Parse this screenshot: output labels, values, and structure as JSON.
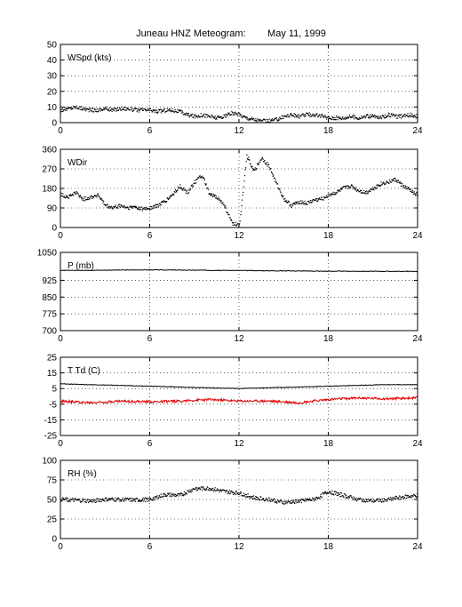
{
  "title": "Juneau HNZ Meteogram:        May 11, 1999",
  "colors": {
    "trace": "#000000",
    "dewpoint": "#e00000",
    "grid": "#000000"
  },
  "chart_data": [
    {
      "type": "scatter",
      "label": "WSpd (kts)",
      "xlim": [
        0,
        24
      ],
      "ylim": [
        0,
        50
      ],
      "xticks": [
        0,
        6,
        12,
        18,
        24
      ],
      "yticks": [
        0,
        10,
        20,
        30,
        40,
        50
      ],
      "grid": true,
      "series": [
        {
          "style": "dots",
          "color": "#000000",
          "x": [
            0,
            0.5,
            1,
            1.5,
            2,
            2.5,
            3,
            3.5,
            4,
            4.5,
            5,
            5.5,
            6,
            6.5,
            7,
            7.5,
            8,
            8.5,
            9,
            9.5,
            10,
            10.5,
            11,
            11.5,
            12,
            12.5,
            13,
            13.5,
            14,
            14.5,
            15,
            15.5,
            16,
            16.5,
            17,
            17.5,
            18,
            18.5,
            19,
            19.5,
            20,
            20.5,
            21,
            21.5,
            22,
            22.5,
            23,
            23.5,
            24
          ],
          "y": [
            8,
            9,
            10,
            9,
            8,
            8,
            9,
            8,
            9,
            9,
            8,
            8,
            8,
            7,
            8,
            8,
            7,
            5,
            4,
            5,
            4,
            3,
            4,
            6,
            5,
            3,
            2,
            1,
            1,
            2,
            4,
            5,
            4,
            5,
            5,
            4,
            3,
            3,
            3,
            4,
            3,
            4,
            4,
            3,
            5,
            4,
            4,
            5,
            4
          ]
        }
      ]
    },
    {
      "type": "scatter",
      "label": "WDir",
      "xlim": [
        0,
        24
      ],
      "ylim": [
        0,
        360
      ],
      "xticks": [
        0,
        6,
        12,
        18,
        24
      ],
      "yticks": [
        0,
        90,
        180,
        270,
        360
      ],
      "grid": true,
      "series": [
        {
          "style": "dots",
          "color": "#000000",
          "x": [
            0,
            0.5,
            1,
            1.5,
            2,
            2.5,
            3,
            3.5,
            4,
            4.5,
            5,
            5.5,
            6,
            6.5,
            7,
            7.5,
            8,
            8.5,
            9,
            9.5,
            10,
            10.5,
            11,
            11.5,
            12,
            12.5,
            13,
            13.5,
            14,
            14.5,
            15,
            15.5,
            16,
            16.5,
            17,
            17.5,
            18,
            18.5,
            19,
            19.5,
            20,
            20.5,
            21,
            21.5,
            22,
            22.5,
            23,
            23.5,
            24
          ],
          "y": [
            150,
            140,
            160,
            130,
            140,
            150,
            100,
            90,
            100,
            90,
            95,
            85,
            90,
            100,
            120,
            150,
            190,
            160,
            210,
            240,
            150,
            140,
            100,
            20,
            10,
            330,
            260,
            320,
            280,
            200,
            130,
            100,
            120,
            110,
            125,
            130,
            150,
            160,
            180,
            190,
            170,
            160,
            180,
            200,
            210,
            220,
            190,
            170,
            150
          ]
        }
      ]
    },
    {
      "type": "line",
      "label": "P (mb)",
      "xlim": [
        0,
        24
      ],
      "ylim": [
        700,
        1050
      ],
      "xticks": [
        0,
        6,
        12,
        18,
        24
      ],
      "yticks": [
        700,
        775,
        850,
        925,
        1050
      ],
      "grid": true,
      "series": [
        {
          "style": "line",
          "color": "#000000",
          "x": [
            0,
            6,
            12,
            18,
            24
          ],
          "y": [
            969,
            972,
            969,
            966,
            965
          ]
        }
      ]
    },
    {
      "type": "line",
      "label": "T Td (C)",
      "xlim": [
        0,
        24
      ],
      "ylim": [
        -25,
        25
      ],
      "xticks": [
        0,
        6,
        12,
        18,
        24
      ],
      "yticks": [
        -25,
        -15,
        -5,
        5,
        15,
        25
      ],
      "grid": true,
      "series": [
        {
          "style": "line",
          "color": "#000000",
          "x": [
            0,
            2,
            4,
            6,
            8,
            10,
            12,
            14,
            16,
            18,
            20,
            22,
            24
          ],
          "y": [
            8,
            7.5,
            7,
            6.5,
            6,
            5.5,
            5,
            5.5,
            6,
            6.5,
            7,
            7.5,
            7.5
          ]
        },
        {
          "style": "noisy",
          "color": "#e00000",
          "x": [
            0,
            2,
            4,
            6,
            8,
            10,
            12,
            14,
            16,
            18,
            20,
            22,
            24
          ],
          "y": [
            -3,
            -4,
            -3,
            -3.5,
            -3,
            -2,
            -3,
            -3,
            -4,
            -2,
            -1,
            -1.5,
            -1
          ]
        }
      ]
    },
    {
      "type": "scatter",
      "label": "RH (%)",
      "xlim": [
        0,
        24
      ],
      "ylim": [
        0,
        100
      ],
      "xticks": [
        0,
        6,
        12,
        18,
        24
      ],
      "yticks": [
        0,
        25,
        50,
        75,
        100
      ],
      "grid": true,
      "series": [
        {
          "style": "dots",
          "color": "#000000",
          "x": [
            0,
            1,
            2,
            3,
            4,
            5,
            6,
            7,
            8,
            9,
            10,
            11,
            12,
            13,
            14,
            15,
            16,
            17,
            18,
            19,
            20,
            21,
            22,
            23,
            24
          ],
          "y": [
            50,
            49,
            48,
            50,
            50,
            49,
            50,
            56,
            55,
            64,
            64,
            60,
            58,
            52,
            50,
            46,
            48,
            50,
            60,
            55,
            50,
            48,
            50,
            53,
            55
          ]
        }
      ]
    }
  ]
}
